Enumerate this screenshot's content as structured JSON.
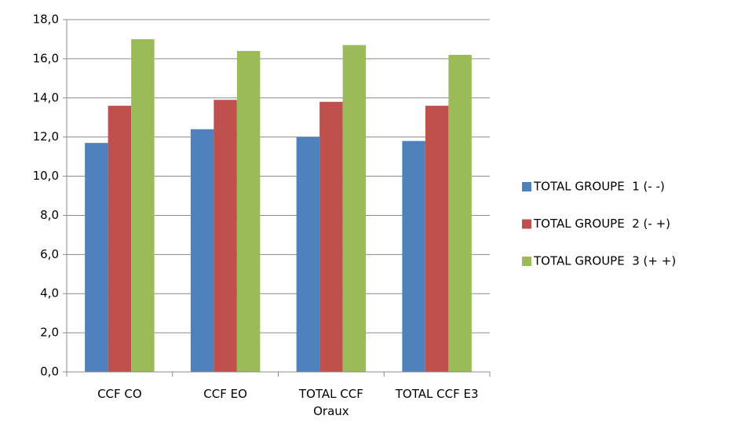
{
  "chart_data": {
    "type": "bar",
    "categories": [
      "CCF CO",
      "CCF EO",
      "TOTAL CCF Oraux",
      "TOTAL CCF E3"
    ],
    "series": [
      {
        "name": "TOTAL GROUPE  1 (- -)",
        "color": "#4f81bd",
        "values": [
          11.7,
          12.4,
          12.0,
          11.8
        ]
      },
      {
        "name": "TOTAL GROUPE  2 (- +)",
        "color": "#c0504d",
        "values": [
          13.6,
          13.9,
          13.8,
          13.6
        ]
      },
      {
        "name": "TOTAL GROUPE  3 (+ +)",
        "color": "#9bbb59",
        "values": [
          17.0,
          16.4,
          16.7,
          16.2
        ]
      }
    ],
    "ylim": [
      0,
      18
    ],
    "yticks": [
      {
        "value": 0,
        "label": "0,0"
      },
      {
        "value": 2,
        "label": "2,0"
      },
      {
        "value": 4,
        "label": "4,0"
      },
      {
        "value": 6,
        "label": "6,0"
      },
      {
        "value": 8,
        "label": "8,0"
      },
      {
        "value": 10,
        "label": "10,0"
      },
      {
        "value": 12,
        "label": "12,0"
      },
      {
        "value": 14,
        "label": "14,0"
      },
      {
        "value": 16,
        "label": "16,0"
      },
      {
        "value": 18,
        "label": "18,0"
      }
    ],
    "grid": true,
    "legend": "right"
  }
}
